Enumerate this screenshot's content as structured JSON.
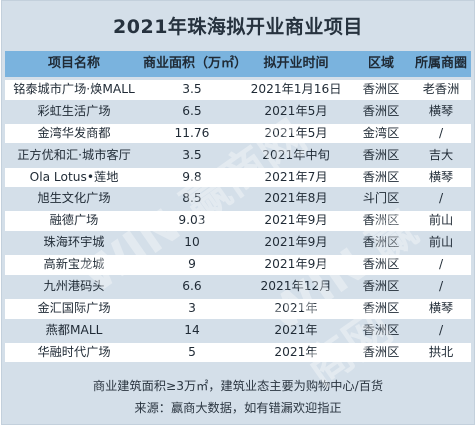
{
  "title": "2021年珠海拟开业商业项目",
  "headers": [
    "项目名称",
    "商业面积（万㎡）",
    "拟开业时间",
    "区域",
    "所属商圈"
  ],
  "rows": [
    [
      "铭泰城市广场·焕MALL",
      "3.5",
      "2021年1月16日",
      "香洲区",
      "老香洲"
    ],
    [
      "彩虹生活广场",
      "6.5",
      "2021年5月",
      "香洲区",
      "横琴"
    ],
    [
      "金湾华发商都",
      "11.76",
      "2021年5月",
      "金湾区",
      "/"
    ],
    [
      "正方优和汇·城市客厅",
      "3.5",
      "2021年中旬",
      "香洲区",
      "吉大"
    ],
    [
      "Ola Lotus•莲地",
      "9.8",
      "2021年7月",
      "香洲区",
      "横琴"
    ],
    [
      "旭生文化广场",
      "8.5",
      "2021年8月",
      "斗门区",
      "/"
    ],
    [
      "融德广场",
      "9.03",
      "2021年9月",
      "香洲区",
      "前山"
    ],
    [
      "珠海环宇城",
      "10",
      "2021年9月",
      "香洲区",
      "前山"
    ],
    [
      "高新宝龙城",
      "9",
      "2021年9月",
      "香洲区",
      "/"
    ],
    [
      "九州港码头",
      "6.6",
      "2021年12月",
      "香洲区",
      "/"
    ],
    [
      "金汇国际广场",
      "3",
      "2021年",
      "香洲区",
      "横琴"
    ],
    [
      "燕都MALL",
      "14",
      "2021年",
      "香洲区",
      "/"
    ],
    [
      "华融时代广场",
      "5",
      "2021年",
      "香洲区",
      "拱北"
    ]
  ],
  "footer": {
    "note": "商业建筑面积≥3万㎡，建筑业态主要为购物中心/百货",
    "source": "来源：赢商大数据，如有错漏欢迎指正"
  },
  "colors": {
    "header_bg": "#7ab3de",
    "body_bg": "#d4dfe9",
    "stripe_bg": "#ffffff"
  },
  "watermark": "WIN 赢商网"
}
